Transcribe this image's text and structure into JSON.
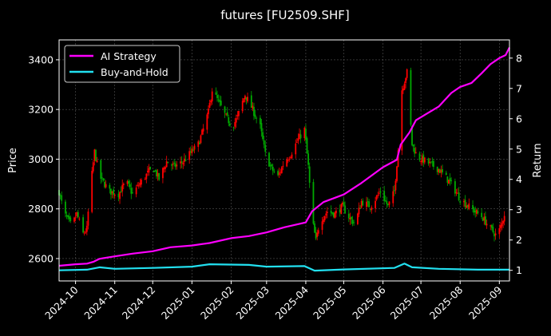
{
  "chart_data": {
    "type": "line",
    "title": "futures [FU2509.SHF]",
    "ylabel_left": "Price",
    "ylabel_right": "Return",
    "ylim_left": [
      2510,
      3480
    ],
    "ylim_right": [
      0.65,
      8.6
    ],
    "yticks_left": [
      2600,
      2800,
      3000,
      3200,
      3400
    ],
    "yticks_right": [
      1,
      2,
      3,
      4,
      5,
      6,
      7,
      8
    ],
    "xlim": [
      "2024-09-18",
      "2025-09-09"
    ],
    "xticks": [
      "2024-10",
      "2024-11",
      "2024-12",
      "2025-01",
      "2025-02",
      "2025-03",
      "2025-04",
      "2025-05",
      "2025-06",
      "2025-07",
      "2025-08",
      "2025-09"
    ],
    "grid": true,
    "legend_position": "top-left",
    "candle_colors": {
      "up": "#ff0000",
      "down": "#00aa00"
    },
    "price_close_anchors": [
      [
        "2024-09-18",
        2870
      ],
      [
        "2024-09-22",
        2780
      ],
      [
        "2024-09-28",
        2730
      ],
      [
        "2024-10-02",
        2780
      ],
      [
        "2024-10-07",
        2700
      ],
      [
        "2024-10-10",
        2720
      ],
      [
        "2024-10-12",
        2850
      ],
      [
        "2024-10-16",
        3030
      ],
      [
        "2024-10-20",
        2930
      ],
      [
        "2024-10-28",
        2870
      ],
      [
        "2024-11-04",
        2860
      ],
      [
        "2024-11-10",
        2910
      ],
      [
        "2024-11-15",
        2860
      ],
      [
        "2024-11-22",
        2910
      ],
      [
        "2024-11-28",
        2950
      ],
      [
        "2024-12-02",
        2960
      ],
      [
        "2024-12-06",
        2920
      ],
      [
        "2024-12-12",
        2990
      ],
      [
        "2024-12-18",
        2970
      ],
      [
        "2024-12-25",
        2990
      ],
      [
        "2024-12-30",
        3020
      ],
      [
        "2025-01-06",
        3060
      ],
      [
        "2025-01-10",
        3120
      ],
      [
        "2025-01-14",
        3190
      ],
      [
        "2025-01-17",
        3280
      ],
      [
        "2025-01-22",
        3230
      ],
      [
        "2025-01-28",
        3170
      ],
      [
        "2025-02-02",
        3130
      ],
      [
        "2025-02-06",
        3170
      ],
      [
        "2025-02-12",
        3260
      ],
      [
        "2025-02-18",
        3200
      ],
      [
        "2025-02-24",
        3130
      ],
      [
        "2025-02-28",
        3020
      ],
      [
        "2025-03-05",
        2960
      ],
      [
        "2025-03-10",
        2930
      ],
      [
        "2025-03-15",
        2990
      ],
      [
        "2025-03-20",
        3020
      ],
      [
        "2025-03-26",
        3080
      ],
      [
        "2025-03-31",
        3120
      ],
      [
        "2025-04-03",
        2970
      ],
      [
        "2025-04-06",
        2760
      ],
      [
        "2025-04-09",
        2670
      ],
      [
        "2025-04-12",
        2750
      ],
      [
        "2025-04-18",
        2790
      ],
      [
        "2025-04-24",
        2780
      ],
      [
        "2025-04-30",
        2810
      ],
      [
        "2025-05-06",
        2760
      ],
      [
        "2025-05-10",
        2740
      ],
      [
        "2025-05-15",
        2830
      ],
      [
        "2025-05-22",
        2810
      ],
      [
        "2025-05-30",
        2870
      ],
      [
        "2025-06-05",
        2810
      ],
      [
        "2025-06-10",
        2870
      ],
      [
        "2025-06-13",
        3040
      ],
      [
        "2025-06-16",
        3280
      ],
      [
        "2025-06-20",
        3350
      ],
      [
        "2025-06-24",
        3060
      ],
      [
        "2025-06-28",
        3010
      ],
      [
        "2025-07-05",
        2990
      ],
      [
        "2025-07-15",
        2960
      ],
      [
        "2025-07-25",
        2900
      ],
      [
        "2025-08-01",
        2840
      ],
      [
        "2025-08-10",
        2800
      ],
      [
        "2025-08-18",
        2770
      ],
      [
        "2025-08-25",
        2720
      ],
      [
        "2025-08-30",
        2690
      ],
      [
        "2025-09-03",
        2740
      ],
      [
        "2025-09-06",
        2800
      ],
      [
        "2025-09-07",
        2580
      ]
    ],
    "series": [
      {
        "name": "AI Strategy",
        "color": "#ff00ff",
        "points": [
          [
            "2024-09-18",
            1.15
          ],
          [
            "2024-10-01",
            1.2
          ],
          [
            "2024-10-10",
            1.22
          ],
          [
            "2024-10-15",
            1.28
          ],
          [
            "2024-10-20",
            1.38
          ],
          [
            "2024-11-01",
            1.46
          ],
          [
            "2024-11-15",
            1.55
          ],
          [
            "2024-12-01",
            1.63
          ],
          [
            "2024-12-15",
            1.76
          ],
          [
            "2025-01-01",
            1.82
          ],
          [
            "2025-01-15",
            1.9
          ],
          [
            "2025-02-01",
            2.06
          ],
          [
            "2025-02-15",
            2.13
          ],
          [
            "2025-03-01",
            2.25
          ],
          [
            "2025-03-15",
            2.42
          ],
          [
            "2025-04-01",
            2.58
          ],
          [
            "2025-04-06",
            2.95
          ],
          [
            "2025-04-15",
            3.25
          ],
          [
            "2025-05-01",
            3.5
          ],
          [
            "2025-05-15",
            3.88
          ],
          [
            "2025-06-01",
            4.4
          ],
          [
            "2025-06-12",
            4.65
          ],
          [
            "2025-06-15",
            5.15
          ],
          [
            "2025-06-22",
            5.55
          ],
          [
            "2025-06-27",
            5.95
          ],
          [
            "2025-07-05",
            6.15
          ],
          [
            "2025-07-15",
            6.4
          ],
          [
            "2025-07-25",
            6.85
          ],
          [
            "2025-08-01",
            7.05
          ],
          [
            "2025-08-10",
            7.18
          ],
          [
            "2025-08-18",
            7.5
          ],
          [
            "2025-08-25",
            7.8
          ],
          [
            "2025-09-01",
            8.0
          ],
          [
            "2025-09-06",
            8.1
          ],
          [
            "2025-09-09",
            8.35
          ]
        ]
      },
      {
        "name": "Buy-and-Hold",
        "color": "#22e0f0",
        "points": [
          [
            "2024-09-18",
            1.0
          ],
          [
            "2024-10-10",
            1.02
          ],
          [
            "2024-10-20",
            1.1
          ],
          [
            "2024-11-01",
            1.05
          ],
          [
            "2024-12-01",
            1.08
          ],
          [
            "2025-01-01",
            1.12
          ],
          [
            "2025-01-15",
            1.2
          ],
          [
            "2025-02-15",
            1.18
          ],
          [
            "2025-03-01",
            1.12
          ],
          [
            "2025-03-31",
            1.14
          ],
          [
            "2025-04-08",
            0.99
          ],
          [
            "2025-05-01",
            1.03
          ],
          [
            "2025-06-10",
            1.08
          ],
          [
            "2025-06-18",
            1.22
          ],
          [
            "2025-06-24",
            1.1
          ],
          [
            "2025-07-15",
            1.05
          ],
          [
            "2025-08-15",
            1.02
          ],
          [
            "2025-09-09",
            1.02
          ]
        ]
      }
    ]
  }
}
